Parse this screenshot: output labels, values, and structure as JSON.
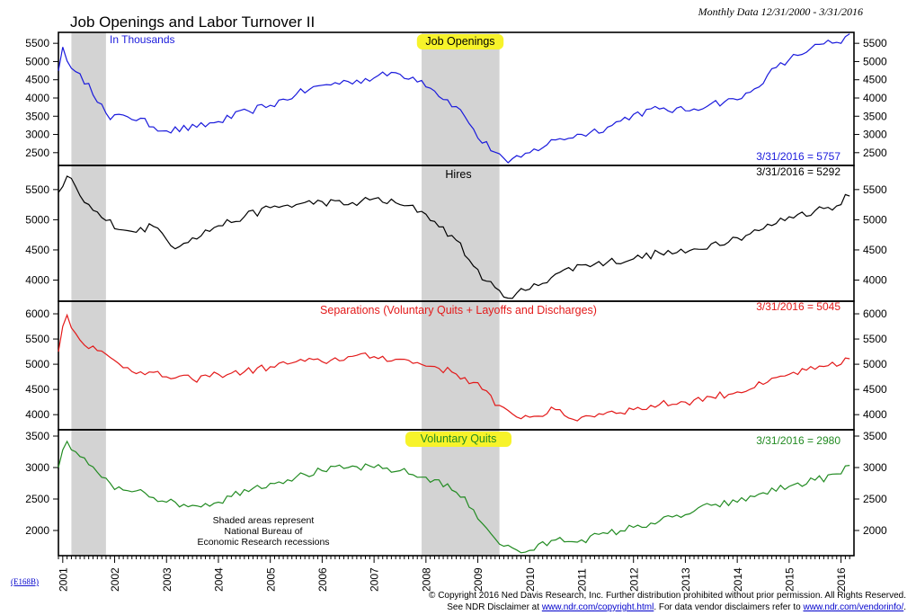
{
  "header": {
    "title": "Job Openings and Labor Turnover II",
    "subtitle": "Monthly Data 12/31/2000 - 3/31/2016"
  },
  "ref_code": "(E168B)",
  "recession_note": [
    "Shaded areas represent",
    "National Bureau of",
    "Economic Research recessions"
  ],
  "footer": {
    "line1": "© Copyright 2016 Ned Davis Research, Inc.  Further distribution prohibited without prior permission.  All Rights Reserved.",
    "line2_prefix": "See NDR Disclaimer at ",
    "line2_link1": "www.ndr.com/copyright.html",
    "line2_middle": ".  For data vendor disclaimers refer to ",
    "line2_link2": "www.ndr.com/vendorinfo/",
    "line2_suffix": "."
  },
  "colors": {
    "highlight": "#f7f32a",
    "recession": "#d3d3d3",
    "link": "#0000cc"
  },
  "chart_data": [
    {
      "type": "line",
      "title": "Job Openings",
      "unit_note": "In Thousands",
      "latest_label": "3/31/2016 = 5757",
      "color": "#1a1adc",
      "ylim": [
        2150,
        5800
      ],
      "yticks": [
        2500,
        3000,
        3500,
        4000,
        4500,
        5000,
        5500
      ],
      "highlighted": true,
      "anchors": [
        [
          2000.917,
          4750
        ],
        [
          2001.0,
          5400
        ],
        [
          2001.2,
          4700
        ],
        [
          2001.5,
          4400
        ],
        [
          2001.9,
          3400
        ],
        [
          2002.2,
          3550
        ],
        [
          2003.0,
          3100
        ],
        [
          2003.6,
          3200
        ],
        [
          2004.0,
          3350
        ],
        [
          2004.6,
          3650
        ],
        [
          2005.0,
          3800
        ],
        [
          2005.5,
          4100
        ],
        [
          2006.0,
          4350
        ],
        [
          2006.5,
          4450
        ],
        [
          2007.0,
          4550
        ],
        [
          2007.4,
          4700
        ],
        [
          2007.9,
          4500
        ],
        [
          2008.2,
          4150
        ],
        [
          2008.6,
          3750
        ],
        [
          2008.9,
          3200
        ],
        [
          2009.0,
          2900
        ],
        [
          2009.5,
          2350
        ],
        [
          2009.6,
          2200
        ],
        [
          2010.0,
          2500
        ],
        [
          2010.5,
          2850
        ],
        [
          2011.0,
          3000
        ],
        [
          2011.5,
          3200
        ],
        [
          2012.0,
          3550
        ],
        [
          2012.5,
          3700
        ],
        [
          2013.0,
          3650
        ],
        [
          2013.5,
          3850
        ],
        [
          2014.0,
          3950
        ],
        [
          2014.3,
          4200
        ],
        [
          2014.6,
          4650
        ],
        [
          2015.0,
          5050
        ],
        [
          2015.4,
          5350
        ],
        [
          2015.7,
          5500
        ],
        [
          2016.0,
          5500
        ],
        [
          2016.25,
          5757
        ]
      ]
    },
    {
      "type": "line",
      "title": "Hires",
      "latest_label": "3/31/2016 = 5292",
      "color": "#000000",
      "ylim": [
        3650,
        5900
      ],
      "yticks": [
        4000,
        4500,
        5000,
        5500
      ],
      "anchors": [
        [
          2000.917,
          5450
        ],
        [
          2001.1,
          5750
        ],
        [
          2001.4,
          5300
        ],
        [
          2001.8,
          5000
        ],
        [
          2002.3,
          4800
        ],
        [
          2002.8,
          4900
        ],
        [
          2003.1,
          4550
        ],
        [
          2003.5,
          4700
        ],
        [
          2004.0,
          4900
        ],
        [
          2004.5,
          5050
        ],
        [
          2005.0,
          5200
        ],
        [
          2005.5,
          5250
        ],
        [
          2006.0,
          5300
        ],
        [
          2006.5,
          5250
        ],
        [
          2007.0,
          5350
        ],
        [
          2007.5,
          5250
        ],
        [
          2007.9,
          5150
        ],
        [
          2008.2,
          4950
        ],
        [
          2008.6,
          4650
        ],
        [
          2008.9,
          4250
        ],
        [
          2009.2,
          3950
        ],
        [
          2009.5,
          3720
        ],
        [
          2010.0,
          3850
        ],
        [
          2010.5,
          4100
        ],
        [
          2011.0,
          4250
        ],
        [
          2011.5,
          4300
        ],
        [
          2012.0,
          4350
        ],
        [
          2012.5,
          4450
        ],
        [
          2013.0,
          4450
        ],
        [
          2013.5,
          4600
        ],
        [
          2014.0,
          4700
        ],
        [
          2014.5,
          4850
        ],
        [
          2015.0,
          5050
        ],
        [
          2015.5,
          5150
        ],
        [
          2016.0,
          5250
        ],
        [
          2016.1,
          5450
        ],
        [
          2016.25,
          5292
        ]
      ]
    },
    {
      "type": "line",
      "title": "Separations (Voluntary Quits + Layoffs and Discharges)",
      "latest_label": "3/31/2016 = 5045",
      "color": "#e31a1a",
      "ylim": [
        3700,
        6250
      ],
      "yticks": [
        4000,
        4500,
        5000,
        5500,
        6000
      ],
      "anchors": [
        [
          2000.917,
          5250
        ],
        [
          2001.05,
          6050
        ],
        [
          2001.3,
          5500
        ],
        [
          2001.7,
          5250
        ],
        [
          2002.1,
          5000
        ],
        [
          2002.5,
          4850
        ],
        [
          2003.0,
          4750
        ],
        [
          2003.5,
          4700
        ],
        [
          2004.0,
          4800
        ],
        [
          2004.5,
          4850
        ],
        [
          2005.0,
          4950
        ],
        [
          2005.5,
          5050
        ],
        [
          2006.0,
          5050
        ],
        [
          2006.5,
          5150
        ],
        [
          2007.0,
          5150
        ],
        [
          2007.5,
          5100
        ],
        [
          2007.9,
          5000
        ],
        [
          2008.2,
          4950
        ],
        [
          2008.6,
          4800
        ],
        [
          2008.9,
          4650
        ],
        [
          2009.2,
          4450
        ],
        [
          2009.35,
          4150
        ],
        [
          2009.7,
          4000
        ],
        [
          2010.0,
          3950
        ],
        [
          2010.5,
          4100
        ],
        [
          2010.8,
          3900
        ],
        [
          2011.0,
          3950
        ],
        [
          2011.5,
          4050
        ],
        [
          2012.0,
          4100
        ],
        [
          2012.5,
          4200
        ],
        [
          2013.0,
          4250
        ],
        [
          2013.5,
          4350
        ],
        [
          2014.0,
          4450
        ],
        [
          2014.5,
          4600
        ],
        [
          2015.0,
          4800
        ],
        [
          2015.5,
          4900
        ],
        [
          2016.0,
          5000
        ],
        [
          2016.1,
          5150
        ],
        [
          2016.25,
          5045
        ]
      ]
    },
    {
      "type": "line",
      "title": "Voluntary Quits",
      "latest_label": "3/31/2016 = 2980",
      "color": "#228b22",
      "ylim": [
        1600,
        3600
      ],
      "yticks": [
        2000,
        2500,
        3000,
        3500
      ],
      "highlighted": true,
      "anchors": [
        [
          2000.917,
          3000
        ],
        [
          2001.05,
          3450
        ],
        [
          2001.3,
          3200
        ],
        [
          2001.7,
          2900
        ],
        [
          2002.0,
          2650
        ],
        [
          2002.5,
          2650
        ],
        [
          2003.0,
          2450
        ],
        [
          2003.5,
          2400
        ],
        [
          2004.0,
          2450
        ],
        [
          2004.5,
          2650
        ],
        [
          2005.0,
          2750
        ],
        [
          2005.5,
          2850
        ],
        [
          2006.0,
          2950
        ],
        [
          2006.5,
          3000
        ],
        [
          2007.0,
          3000
        ],
        [
          2007.5,
          2950
        ],
        [
          2007.9,
          2850
        ],
        [
          2008.2,
          2800
        ],
        [
          2008.6,
          2600
        ],
        [
          2008.9,
          2350
        ],
        [
          2009.2,
          2000
        ],
        [
          2009.5,
          1750
        ],
        [
          2009.9,
          1650
        ],
        [
          2010.5,
          1850
        ],
        [
          2011.0,
          1850
        ],
        [
          2011.5,
          1950
        ],
        [
          2012.0,
          2050
        ],
        [
          2012.5,
          2150
        ],
        [
          2013.0,
          2250
        ],
        [
          2013.5,
          2400
        ],
        [
          2014.0,
          2450
        ],
        [
          2014.5,
          2600
        ],
        [
          2015.0,
          2700
        ],
        [
          2015.5,
          2800
        ],
        [
          2016.0,
          2900
        ],
        [
          2016.1,
          3050
        ],
        [
          2016.25,
          2980
        ]
      ]
    }
  ],
  "x_axis": {
    "xlim": [
      2000.917,
      2016.25
    ],
    "years": [
      "2001",
      "2002",
      "2003",
      "2004",
      "2005",
      "2006",
      "2007",
      "2008",
      "2009",
      "2010",
      "2011",
      "2012",
      "2013",
      "2014",
      "2015",
      "2016"
    ]
  },
  "recessions": [
    [
      2001.167,
      2001.833
    ],
    [
      2007.917,
      2009.417
    ]
  ]
}
